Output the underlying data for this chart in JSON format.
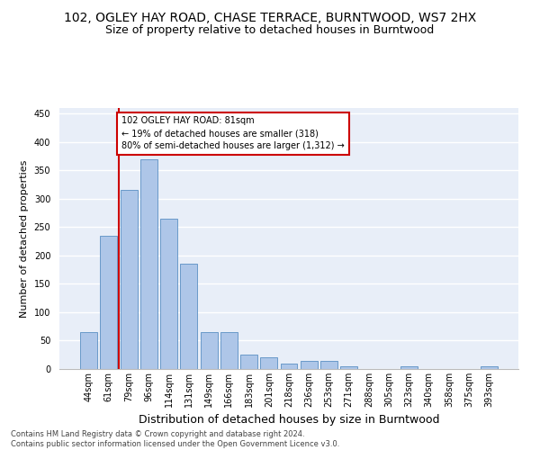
{
  "title": "102, OGLEY HAY ROAD, CHASE TERRACE, BURNTWOOD, WS7 2HX",
  "subtitle": "Size of property relative to detached houses in Burntwood",
  "xlabel": "Distribution of detached houses by size in Burntwood",
  "ylabel": "Number of detached properties",
  "categories": [
    "44sqm",
    "61sqm",
    "79sqm",
    "96sqm",
    "114sqm",
    "131sqm",
    "149sqm",
    "166sqm",
    "183sqm",
    "201sqm",
    "218sqm",
    "236sqm",
    "253sqm",
    "271sqm",
    "288sqm",
    "305sqm",
    "323sqm",
    "340sqm",
    "358sqm",
    "375sqm",
    "393sqm"
  ],
  "values": [
    65,
    235,
    315,
    370,
    265,
    185,
    65,
    65,
    25,
    20,
    10,
    15,
    15,
    5,
    0,
    0,
    5,
    0,
    0,
    0,
    5
  ],
  "bar_color": "#aec6e8",
  "bar_edge_color": "#5a8fc3",
  "annotation_text_line1": "102 OGLEY HAY ROAD: 81sqm",
  "annotation_text_line2": "← 19% of detached houses are smaller (318)",
  "annotation_text_line3": "80% of semi-detached houses are larger (1,312) →",
  "annotation_box_facecolor": "#ffffff",
  "annotation_box_edgecolor": "#cc0000",
  "vline_color": "#cc0000",
  "vline_x": 1.5,
  "footer_line1": "Contains HM Land Registry data © Crown copyright and database right 2024.",
  "footer_line2": "Contains public sector information licensed under the Open Government Licence v3.0.",
  "ylim": [
    0,
    460
  ],
  "yticks": [
    0,
    50,
    100,
    150,
    200,
    250,
    300,
    350,
    400,
    450
  ],
  "background_color": "#e8eef8",
  "grid_color": "#ffffff",
  "title_fontsize": 10,
  "subtitle_fontsize": 9,
  "ylabel_fontsize": 8,
  "xlabel_fontsize": 9,
  "tick_fontsize": 7,
  "footer_fontsize": 6
}
